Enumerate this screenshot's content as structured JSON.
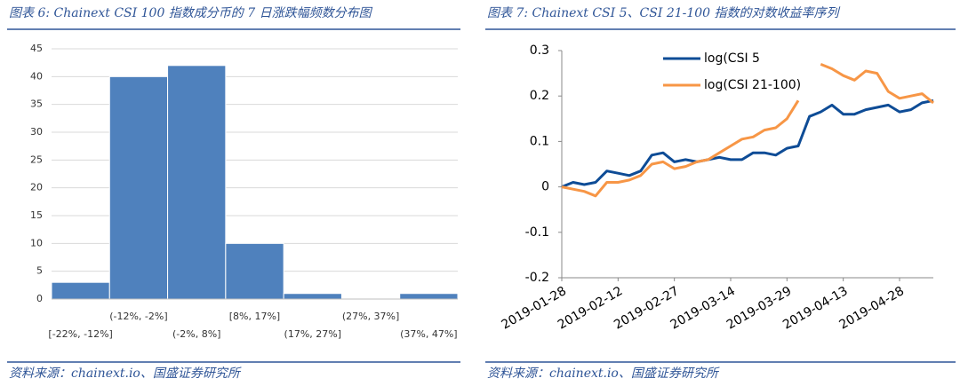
{
  "chart_data": [
    {
      "type": "bar",
      "title": "图表 6:  Chainext CSI 100 指数成分币的 7 日涨跌幅频数分布图",
      "source": "资料来源：chainext.io、国盛证券研究所",
      "categories": [
        "[-22%, -12%]",
        "(-12%, -2%]",
        "(-2%, 8%]",
        "[8%, 17%]",
        "(17%, 27%]",
        "(27%, 37%]",
        "(37%, 47%]"
      ],
      "values": [
        3,
        40,
        42,
        10,
        1,
        0,
        1
      ],
      "color": "#4f81bd",
      "ylim": [
        0,
        45
      ],
      "yticks": [
        0,
        5,
        10,
        15,
        20,
        25,
        30,
        35,
        40,
        45
      ],
      "grid": true
    },
    {
      "type": "line",
      "title": "图表 7:  Chainext CSI 5、CSI 21-100 指数的对数收益率序列",
      "source": "资料来源：chainext.io、国盛证券研究所",
      "x": [
        "2019-01-28",
        "2019-01-31",
        "2019-02-03",
        "2019-02-06",
        "2019-02-09",
        "2019-02-12",
        "2019-02-15",
        "2019-02-18",
        "2019-02-21",
        "2019-02-24",
        "2019-02-27",
        "2019-03-02",
        "2019-03-05",
        "2019-03-08",
        "2019-03-11",
        "2019-03-14",
        "2019-03-17",
        "2019-03-20",
        "2019-03-23",
        "2019-03-26",
        "2019-03-29",
        "2019-04-01",
        "2019-04-04",
        "2019-04-07",
        "2019-04-10",
        "2019-04-13",
        "2019-04-16",
        "2019-04-19",
        "2019-04-22",
        "2019-04-25",
        "2019-04-28",
        "2019-05-01",
        "2019-05-04",
        "2019-05-07"
      ],
      "series": [
        {
          "name": "log(CSI 5",
          "color": "#0e4c96",
          "values": [
            0,
            0.01,
            0.005,
            0.01,
            0.035,
            0.03,
            0.025,
            0.035,
            0.07,
            0.075,
            0.055,
            0.06,
            0.055,
            0.06,
            0.065,
            0.06,
            0.06,
            0.075,
            0.075,
            0.07,
            0.085,
            0.09,
            0.155,
            0.165,
            0.18,
            0.16,
            0.16,
            0.17,
            0.175,
            0.18,
            0.165,
            0.17,
            0.185,
            0.19
          ]
        },
        {
          "name": "log(CSI 21-100)",
          "color": "#f79646",
          "values": [
            0,
            -0.005,
            -0.01,
            -0.02,
            0.01,
            0.01,
            0.015,
            0.025,
            0.05,
            0.055,
            0.04,
            0.045,
            0.055,
            0.06,
            0.075,
            0.09,
            0.105,
            0.11,
            0.125,
            0.13,
            0.15,
            0.19,
            null,
            0.27,
            0.26,
            0.245,
            0.235,
            0.255,
            0.25,
            0.21,
            0.195,
            0.2,
            0.205,
            0.185
          ]
        }
      ],
      "xlim": [
        "2019-01-28",
        "2019-05-07"
      ],
      "xticks": [
        "2019-01-28",
        "2019-02-12",
        "2019-02-27",
        "2019-03-14",
        "2019-03-29",
        "2019-04-13",
        "2019-04-28"
      ],
      "ylim": [
        -0.2,
        0.3
      ],
      "yticks": [
        -0.2,
        -0.1,
        0,
        0.1,
        0.2,
        0.3
      ],
      "legend": "upper center"
    }
  ]
}
